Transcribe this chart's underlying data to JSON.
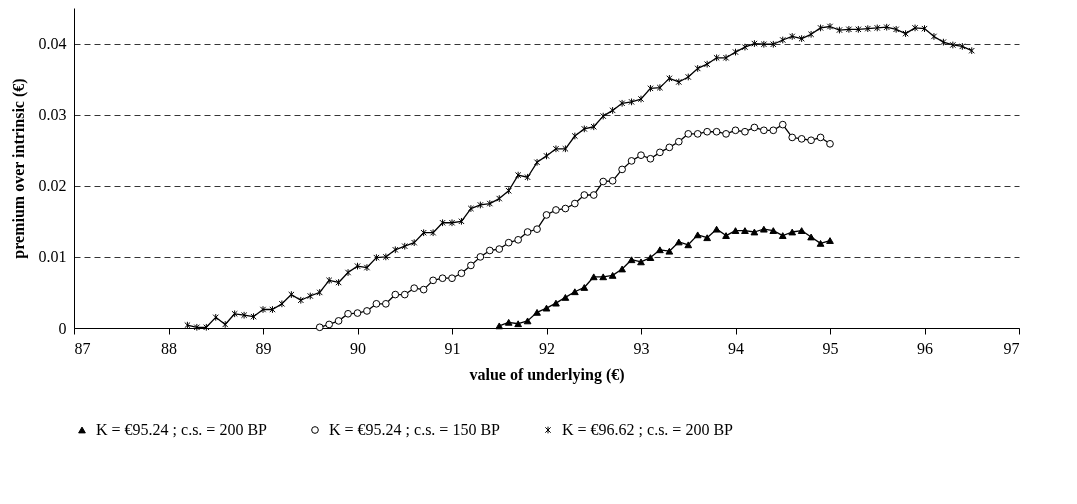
{
  "chart_data": {
    "type": "line",
    "xlabel": "value of underlying (€)",
    "ylabel": "premium over intrinsic (€)",
    "xlim": [
      87,
      97
    ],
    "xticks": [
      87,
      88,
      89,
      90,
      91,
      92,
      93,
      94,
      95,
      96,
      97
    ],
    "ylim": [
      0,
      0.045
    ],
    "yticks": [
      0,
      0.01,
      0.02,
      0.03,
      0.04
    ],
    "grid": "y",
    "legend": "bottom",
    "line_style": "solid",
    "series": [
      {
        "name": "K = €95.24 ; c.s. = 200 BP",
        "color": "#000000",
        "marker": "triangle",
        "x": [
          91.5,
          91.6,
          91.7,
          91.8,
          91.9,
          92.0,
          92.1,
          92.2,
          92.3,
          92.4,
          92.5,
          92.6,
          92.7,
          92.8,
          92.9,
          93.0,
          93.1,
          93.2,
          93.3,
          93.4,
          93.5,
          93.6,
          93.7,
          93.8,
          93.9,
          94.0,
          94.1,
          94.2,
          94.3,
          94.4,
          94.5,
          94.6,
          94.7,
          94.8,
          94.9,
          95.0
        ],
        "values": [
          0.0003,
          0.0008,
          0.0006,
          0.001,
          0.0022,
          0.0028,
          0.0035,
          0.0043,
          0.0051,
          0.0057,
          0.0072,
          0.0072,
          0.0074,
          0.0083,
          0.0096,
          0.0093,
          0.0099,
          0.011,
          0.0108,
          0.0121,
          0.0117,
          0.0131,
          0.0127,
          0.0139,
          0.013,
          0.0137,
          0.0137,
          0.0135,
          0.0139,
          0.0137,
          0.013,
          0.0135,
          0.0137,
          0.0128,
          0.0119,
          0.0123
        ]
      },
      {
        "name": "K = €95.24 ; c.s. = 150 BP",
        "color": "#000000",
        "marker": "circle",
        "x": [
          89.6,
          89.7,
          89.8,
          89.9,
          90.0,
          90.1,
          90.2,
          90.3,
          90.4,
          90.5,
          90.6,
          90.7,
          90.8,
          90.9,
          91.0,
          91.1,
          91.2,
          91.3,
          91.4,
          91.5,
          91.6,
          91.7,
          91.8,
          91.9,
          92.0,
          92.1,
          92.2,
          92.3,
          92.4,
          92.5,
          92.6,
          92.7,
          92.8,
          92.9,
          93.0,
          93.1,
          93.2,
          93.3,
          93.4,
          93.5,
          93.6,
          93.7,
          93.8,
          93.9,
          94.0,
          94.1,
          94.2,
          94.3,
          94.4,
          94.5,
          94.6,
          94.7,
          94.8,
          94.9,
          95.0
        ],
        "values": [
          0.0001,
          0.0005,
          0.001,
          0.002,
          0.0021,
          0.0024,
          0.0034,
          0.0034,
          0.0047,
          0.0047,
          0.0056,
          0.0054,
          0.0067,
          0.007,
          0.007,
          0.0077,
          0.0088,
          0.01,
          0.0109,
          0.0111,
          0.012,
          0.0124,
          0.0135,
          0.0139,
          0.0159,
          0.0166,
          0.0168,
          0.0175,
          0.0187,
          0.0187,
          0.0206,
          0.0207,
          0.0223,
          0.0235,
          0.0243,
          0.0238,
          0.0247,
          0.0254,
          0.0262,
          0.0273,
          0.0273,
          0.0276,
          0.0276,
          0.0273,
          0.0278,
          0.0276,
          0.0282,
          0.0278,
          0.0278,
          0.0286,
          0.0268,
          0.0266,
          0.0264,
          0.0268,
          0.0259
        ]
      },
      {
        "name": "K = €96.62 ; c.s. = 200 BP",
        "color": "#000000",
        "marker": "cross",
        "x": [
          88.2,
          88.3,
          88.4,
          88.5,
          88.6,
          88.7,
          88.8,
          88.9,
          89.0,
          89.1,
          89.2,
          89.3,
          89.4,
          89.5,
          89.6,
          89.7,
          89.8,
          89.9,
          90.0,
          90.1,
          90.2,
          90.3,
          90.4,
          90.5,
          90.6,
          90.7,
          90.8,
          90.9,
          91.0,
          91.1,
          91.2,
          91.3,
          91.4,
          91.5,
          91.6,
          91.7,
          91.8,
          91.9,
          92.0,
          92.1,
          92.2,
          92.3,
          92.4,
          92.5,
          92.6,
          92.7,
          92.8,
          92.9,
          93.0,
          93.1,
          93.2,
          93.3,
          93.4,
          93.5,
          93.6,
          93.7,
          93.8,
          93.9,
          94.0,
          94.1,
          94.2,
          94.3,
          94.4,
          94.5,
          94.6,
          94.7,
          94.8,
          94.9,
          95.0,
          95.1,
          95.2,
          95.3,
          95.4,
          95.5,
          95.6,
          95.7,
          95.8,
          95.9,
          96.0,
          96.1,
          96.2,
          96.3,
          96.4,
          96.5
        ],
        "values": [
          0.0004,
          0.0001,
          0.0001,
          0.0015,
          0.0005,
          0.002,
          0.0018,
          0.0016,
          0.0026,
          0.0026,
          0.0034,
          0.0047,
          0.0039,
          0.0045,
          0.005,
          0.0067,
          0.0064,
          0.0078,
          0.0087,
          0.0085,
          0.0099,
          0.01,
          0.011,
          0.0115,
          0.012,
          0.0134,
          0.0134,
          0.0148,
          0.0148,
          0.015,
          0.0168,
          0.0173,
          0.0175,
          0.0182,
          0.0193,
          0.0215,
          0.0212,
          0.0233,
          0.0242,
          0.0252,
          0.0252,
          0.027,
          0.028,
          0.0283,
          0.0298,
          0.0306,
          0.0316,
          0.0318,
          0.0322,
          0.0337,
          0.0338,
          0.0351,
          0.0346,
          0.0353,
          0.0365,
          0.0371,
          0.038,
          0.038,
          0.0388,
          0.0395,
          0.04,
          0.0399,
          0.0399,
          0.0405,
          0.041,
          0.0407,
          0.0413,
          0.0422,
          0.0424,
          0.0419,
          0.042,
          0.042,
          0.0421,
          0.0422,
          0.0423,
          0.042,
          0.0414,
          0.0422,
          0.0421,
          0.041,
          0.0402,
          0.0398,
          0.0396,
          0.039
        ]
      }
    ]
  }
}
